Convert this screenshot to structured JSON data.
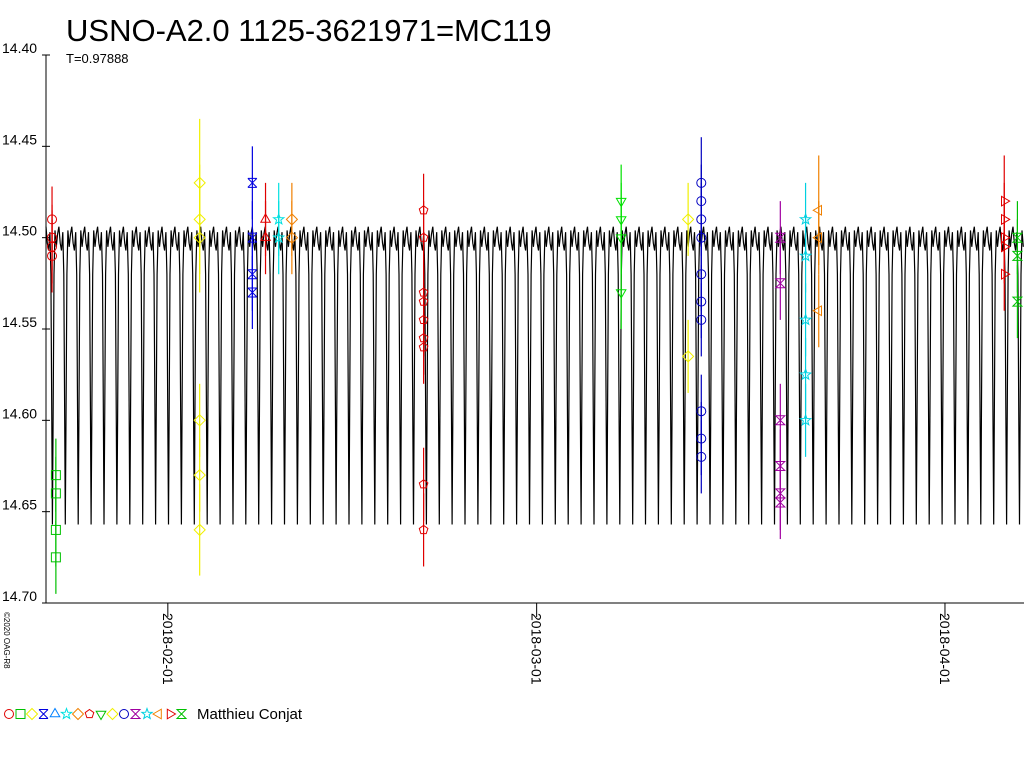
{
  "chart_data": {
    "type": "scatter",
    "title": "USNO-A2.0 1125-3621971=MC119",
    "period": {
      "value": 0.97888,
      "label": "T=0.97888"
    },
    "copyright": "©2020 OAG-R8",
    "observer": "Matthieu Conjat",
    "ylim": [
      14.4,
      14.7
    ],
    "y_inverted": true,
    "yticks": [
      {
        "value": 14.4,
        "label": "14.40"
      },
      {
        "value": 14.45,
        "label": "14.45"
      },
      {
        "value": 14.5,
        "label": "14.50"
      },
      {
        "value": 14.55,
        "label": "14.55"
      },
      {
        "value": 14.6,
        "label": "14.60"
      },
      {
        "value": 14.65,
        "label": "14.65"
      },
      {
        "value": 14.7,
        "label": "14.70"
      }
    ],
    "xlim": [
      "2018-01-22T18:00",
      "2018-04-07T00:00"
    ],
    "xticks": [
      "2018-02-01",
      "2018-03-01",
      "2018-04-01"
    ],
    "model": {
      "color": "#000000",
      "phases": [
        0,
        0.1,
        0.2,
        0.3,
        0.38,
        0.45,
        0.5,
        0.55,
        0.62,
        0.7,
        0.8,
        0.9,
        1
      ],
      "values": [
        14.494,
        14.503,
        14.507,
        14.497,
        14.52,
        14.6,
        14.657,
        14.6,
        14.52,
        14.496,
        14.505,
        14.498,
        14.494
      ]
    },
    "series": [
      {
        "color": "#e00000",
        "marker": "circle",
        "x": [
          "2018-01-23T05:00",
          "2018-01-23T05:00",
          "2018-01-23T05:00",
          "2018-01-23T05:00"
        ],
        "values": [
          14.49,
          14.5,
          14.505,
          14.51
        ],
        "errors": [
          0.018,
          0.018,
          0.02,
          0.02
        ]
      },
      {
        "color": "#00c000",
        "marker": "square",
        "x": [
          "2018-01-23T12:00",
          "2018-01-23T12:00",
          "2018-01-23T12:00",
          "2018-01-23T12:00"
        ],
        "values": [
          14.63,
          14.64,
          14.66,
          14.675
        ],
        "errors": [
          0.02,
          0.02,
          0.02,
          0.02
        ]
      },
      {
        "color": "#f0f000",
        "marker": "diamond",
        "x": [
          "2018-02-03T10:00",
          "2018-02-03T10:00",
          "2018-02-03T10:00",
          "2018-02-03T10:00",
          "2018-02-03T10:00",
          "2018-02-03T10:00"
        ],
        "values": [
          14.47,
          14.49,
          14.5,
          14.6,
          14.63,
          14.66
        ],
        "errors": [
          0.035,
          0.03,
          0.03,
          0.02,
          0.02,
          0.025
        ]
      },
      {
        "color": "#0000e0",
        "marker": "x",
        "x": [
          "2018-02-07T10:00",
          "2018-02-07T10:00",
          "2018-02-07T10:00",
          "2018-02-07T10:00"
        ],
        "values": [
          14.47,
          14.5,
          14.52,
          14.53
        ],
        "errors": [
          0.02,
          0.02,
          0.02,
          0.02
        ]
      },
      {
        "color": "#e00000",
        "marker": "triangle",
        "x": [
          "2018-02-08T10:00",
          "2018-02-08T10:00"
        ],
        "values": [
          14.49,
          14.5
        ],
        "errors": [
          0.02,
          0.02
        ]
      },
      {
        "color": "#00e0e0",
        "marker": "star",
        "x": [
          "2018-02-09T10:00",
          "2018-02-09T10:00"
        ],
        "values": [
          14.49,
          14.5
        ],
        "errors": [
          0.02,
          0.02
        ]
      },
      {
        "color": "#f08000",
        "marker": "diamond",
        "x": [
          "2018-02-10T10:00",
          "2018-02-10T10:00"
        ],
        "values": [
          14.49,
          14.5
        ],
        "errors": [
          0.02,
          0.02
        ]
      },
      {
        "color": "#e00000",
        "marker": "pentagon",
        "x": [
          "2018-02-20T10:00",
          "2018-02-20T10:00",
          "2018-02-20T10:00",
          "2018-02-20T10:00",
          "2018-02-20T10:00",
          "2018-02-20T10:00",
          "2018-02-20T10:00",
          "2018-02-20T10:00",
          "2018-02-20T10:00"
        ],
        "values": [
          14.485,
          14.5,
          14.53,
          14.535,
          14.545,
          14.555,
          14.56,
          14.635,
          14.66
        ],
        "errors": [
          0.02,
          0.02,
          0.02,
          0.02,
          0.02,
          0.02,
          0.02,
          0.02,
          0.02
        ]
      },
      {
        "color": "#00e000",
        "marker": "tridown",
        "x": [
          "2018-03-07T10:00",
          "2018-03-07T10:00",
          "2018-03-07T10:00",
          "2018-03-07T10:00"
        ],
        "values": [
          14.48,
          14.49,
          14.5,
          14.53
        ],
        "errors": [
          0.02,
          0.02,
          0.02,
          0.02
        ]
      },
      {
        "color": "#f0f000",
        "marker": "diamond",
        "x": [
          "2018-03-12T12:00",
          "2018-03-12T12:00"
        ],
        "values": [
          14.49,
          14.565
        ],
        "errors": [
          0.02,
          0.02
        ]
      },
      {
        "color": "#0000c0",
        "marker": "circle",
        "x": [
          "2018-03-13T12:00",
          "2018-03-13T12:00",
          "2018-03-13T12:00",
          "2018-03-13T12:00",
          "2018-03-13T12:00",
          "2018-03-13T12:00",
          "2018-03-13T12:00",
          "2018-03-13T12:00",
          "2018-03-13T12:00",
          "2018-03-13T12:00"
        ],
        "values": [
          14.47,
          14.48,
          14.49,
          14.5,
          14.52,
          14.535,
          14.545,
          14.595,
          14.61,
          14.62
        ],
        "errors": [
          0.025,
          0.02,
          0.02,
          0.02,
          0.02,
          0.02,
          0.02,
          0.02,
          0.02,
          0.02
        ]
      },
      {
        "color": "#a000a0",
        "marker": "hourglass",
        "x": [
          "2018-03-19T12:00",
          "2018-03-19T12:00",
          "2018-03-19T12:00",
          "2018-03-19T12:00",
          "2018-03-19T12:00",
          "2018-03-19T12:00"
        ],
        "values": [
          14.5,
          14.525,
          14.6,
          14.625,
          14.64,
          14.645
        ],
        "errors": [
          0.02,
          0.02,
          0.02,
          0.02,
          0.02,
          0.02
        ]
      },
      {
        "color": "#00d0e0",
        "marker": "star",
        "x": [
          "2018-03-21T10:00",
          "2018-03-21T10:00",
          "2018-03-21T10:00",
          "2018-03-21T10:00",
          "2018-03-21T10:00"
        ],
        "values": [
          14.49,
          14.51,
          14.545,
          14.575,
          14.6
        ],
        "errors": [
          0.02,
          0.02,
          0.02,
          0.02,
          0.02
        ]
      },
      {
        "color": "#f08000",
        "marker": "trileft",
        "x": [
          "2018-03-22T10:00",
          "2018-03-22T10:00",
          "2018-03-22T10:00"
        ],
        "values": [
          14.485,
          14.5,
          14.54
        ],
        "errors": [
          0.03,
          0.02,
          0.02
        ]
      },
      {
        "color": "#e00000",
        "marker": "triright",
        "x": [
          "2018-04-05T12:00",
          "2018-04-05T12:00",
          "2018-04-05T12:00",
          "2018-04-05T12:00",
          "2018-04-05T12:00"
        ],
        "values": [
          14.48,
          14.49,
          14.5,
          14.505,
          14.52
        ],
        "errors": [
          0.025,
          0.02,
          0.02,
          0.02,
          0.02
        ]
      },
      {
        "color": "#00c000",
        "marker": "hourglass",
        "x": [
          "2018-04-06T12:00",
          "2018-04-06T12:00",
          "2018-04-06T12:00"
        ],
        "values": [
          14.5,
          14.51,
          14.535
        ],
        "errors": [
          0.02,
          0.02,
          0.02
        ]
      }
    ]
  }
}
